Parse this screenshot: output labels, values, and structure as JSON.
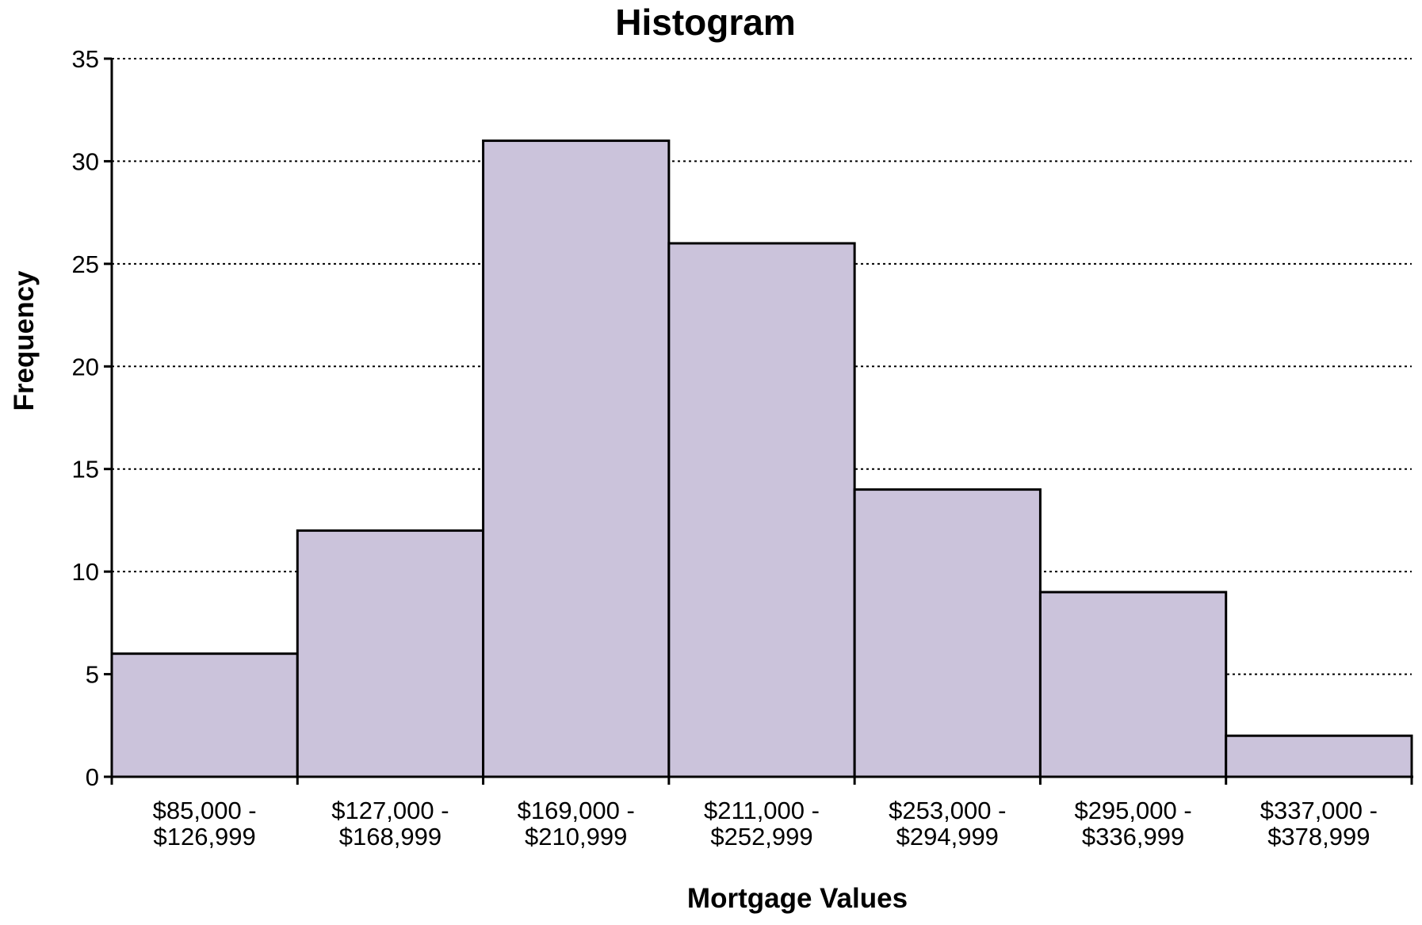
{
  "chart_data": {
    "type": "bar",
    "title": "Histogram",
    "xlabel": "Mortgage Values",
    "ylabel": "Frequency",
    "categories": [
      [
        "$85,000 -",
        "$126,999"
      ],
      [
        "$127,000 -",
        "$168,999"
      ],
      [
        "$169,000 -",
        "$210,999"
      ],
      [
        "$211,000 -",
        "$252,999"
      ],
      [
        "$253,000 -",
        "$294,999"
      ],
      [
        "$295,000 -",
        "$336,999"
      ],
      [
        "$337,000 -",
        "$378,999"
      ]
    ],
    "values": [
      6,
      12,
      31,
      26,
      14,
      9,
      2
    ],
    "ylim": [
      0,
      35
    ],
    "yticks": [
      0,
      5,
      10,
      15,
      20,
      25,
      30,
      35
    ],
    "grid": "horizontal dotted",
    "bar_color": "#cbc3db",
    "bar_edge_color": "#000000"
  }
}
